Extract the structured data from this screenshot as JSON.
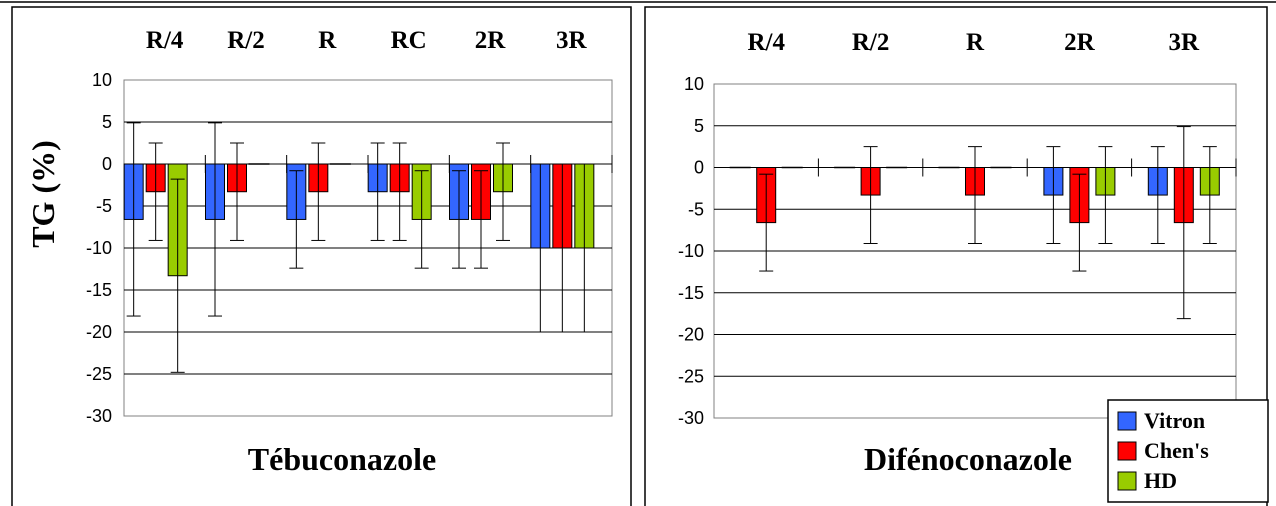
{
  "colors": {
    "Vitron": "#3366ff",
    "Chen's": "#ff0000",
    "HD": "#99cc00"
  },
  "chart_data": [
    {
      "type": "bar",
      "title": "",
      "xlabel": "Tébuconazole",
      "ylabel": "TG (%)",
      "ylim": [
        -30,
        10
      ],
      "yticks": [
        10,
        5,
        0,
        -5,
        -10,
        -15,
        -20,
        -25,
        -30
      ],
      "grid": true,
      "categories": [
        "R/4",
        "R/2",
        "R",
        "RC",
        "2R",
        "3R"
      ],
      "series": [
        {
          "name": "Vitron",
          "values": [
            -6.6,
            -6.6,
            -6.6,
            -3.3,
            -6.6,
            -10
          ],
          "errors": [
            11.5,
            11.5,
            5.8,
            5.8,
            5.8,
            10
          ]
        },
        {
          "name": "Chen's",
          "values": [
            -3.3,
            -3.3,
            -3.3,
            -3.3,
            -6.6,
            -10
          ],
          "errors": [
            5.8,
            5.8,
            5.8,
            5.8,
            5.8,
            10
          ]
        },
        {
          "name": "HD",
          "values": [
            -13.3,
            0,
            0,
            -6.6,
            -3.3,
            -10
          ],
          "errors": [
            11.5,
            0,
            0,
            5.8,
            5.8,
            10
          ]
        }
      ]
    },
    {
      "type": "bar",
      "title": "",
      "xlabel": "Difénoconazole",
      "ylabel": "",
      "ylim": [
        -30,
        10
      ],
      "yticks": [
        10,
        5,
        0,
        -5,
        -10,
        -15,
        -20,
        -25,
        -30
      ],
      "grid": true,
      "legend": "bottom-right",
      "categories": [
        "R/4",
        "R/2",
        "R",
        "2R",
        "3R"
      ],
      "series": [
        {
          "name": "Vitron",
          "values": [
            0,
            0,
            0,
            -3.3,
            -3.3
          ],
          "errors": [
            0,
            0,
            0,
            5.8,
            5.8
          ]
        },
        {
          "name": "Chen's",
          "values": [
            -6.6,
            -3.3,
            -3.3,
            -6.6,
            -6.6
          ],
          "errors": [
            5.8,
            5.8,
            5.8,
            5.8,
            11.5
          ]
        },
        {
          "name": "HD",
          "values": [
            0,
            0,
            0,
            -3.3,
            -3.3
          ],
          "errors": [
            0,
            0,
            0,
            5.8,
            5.8
          ]
        }
      ]
    }
  ]
}
